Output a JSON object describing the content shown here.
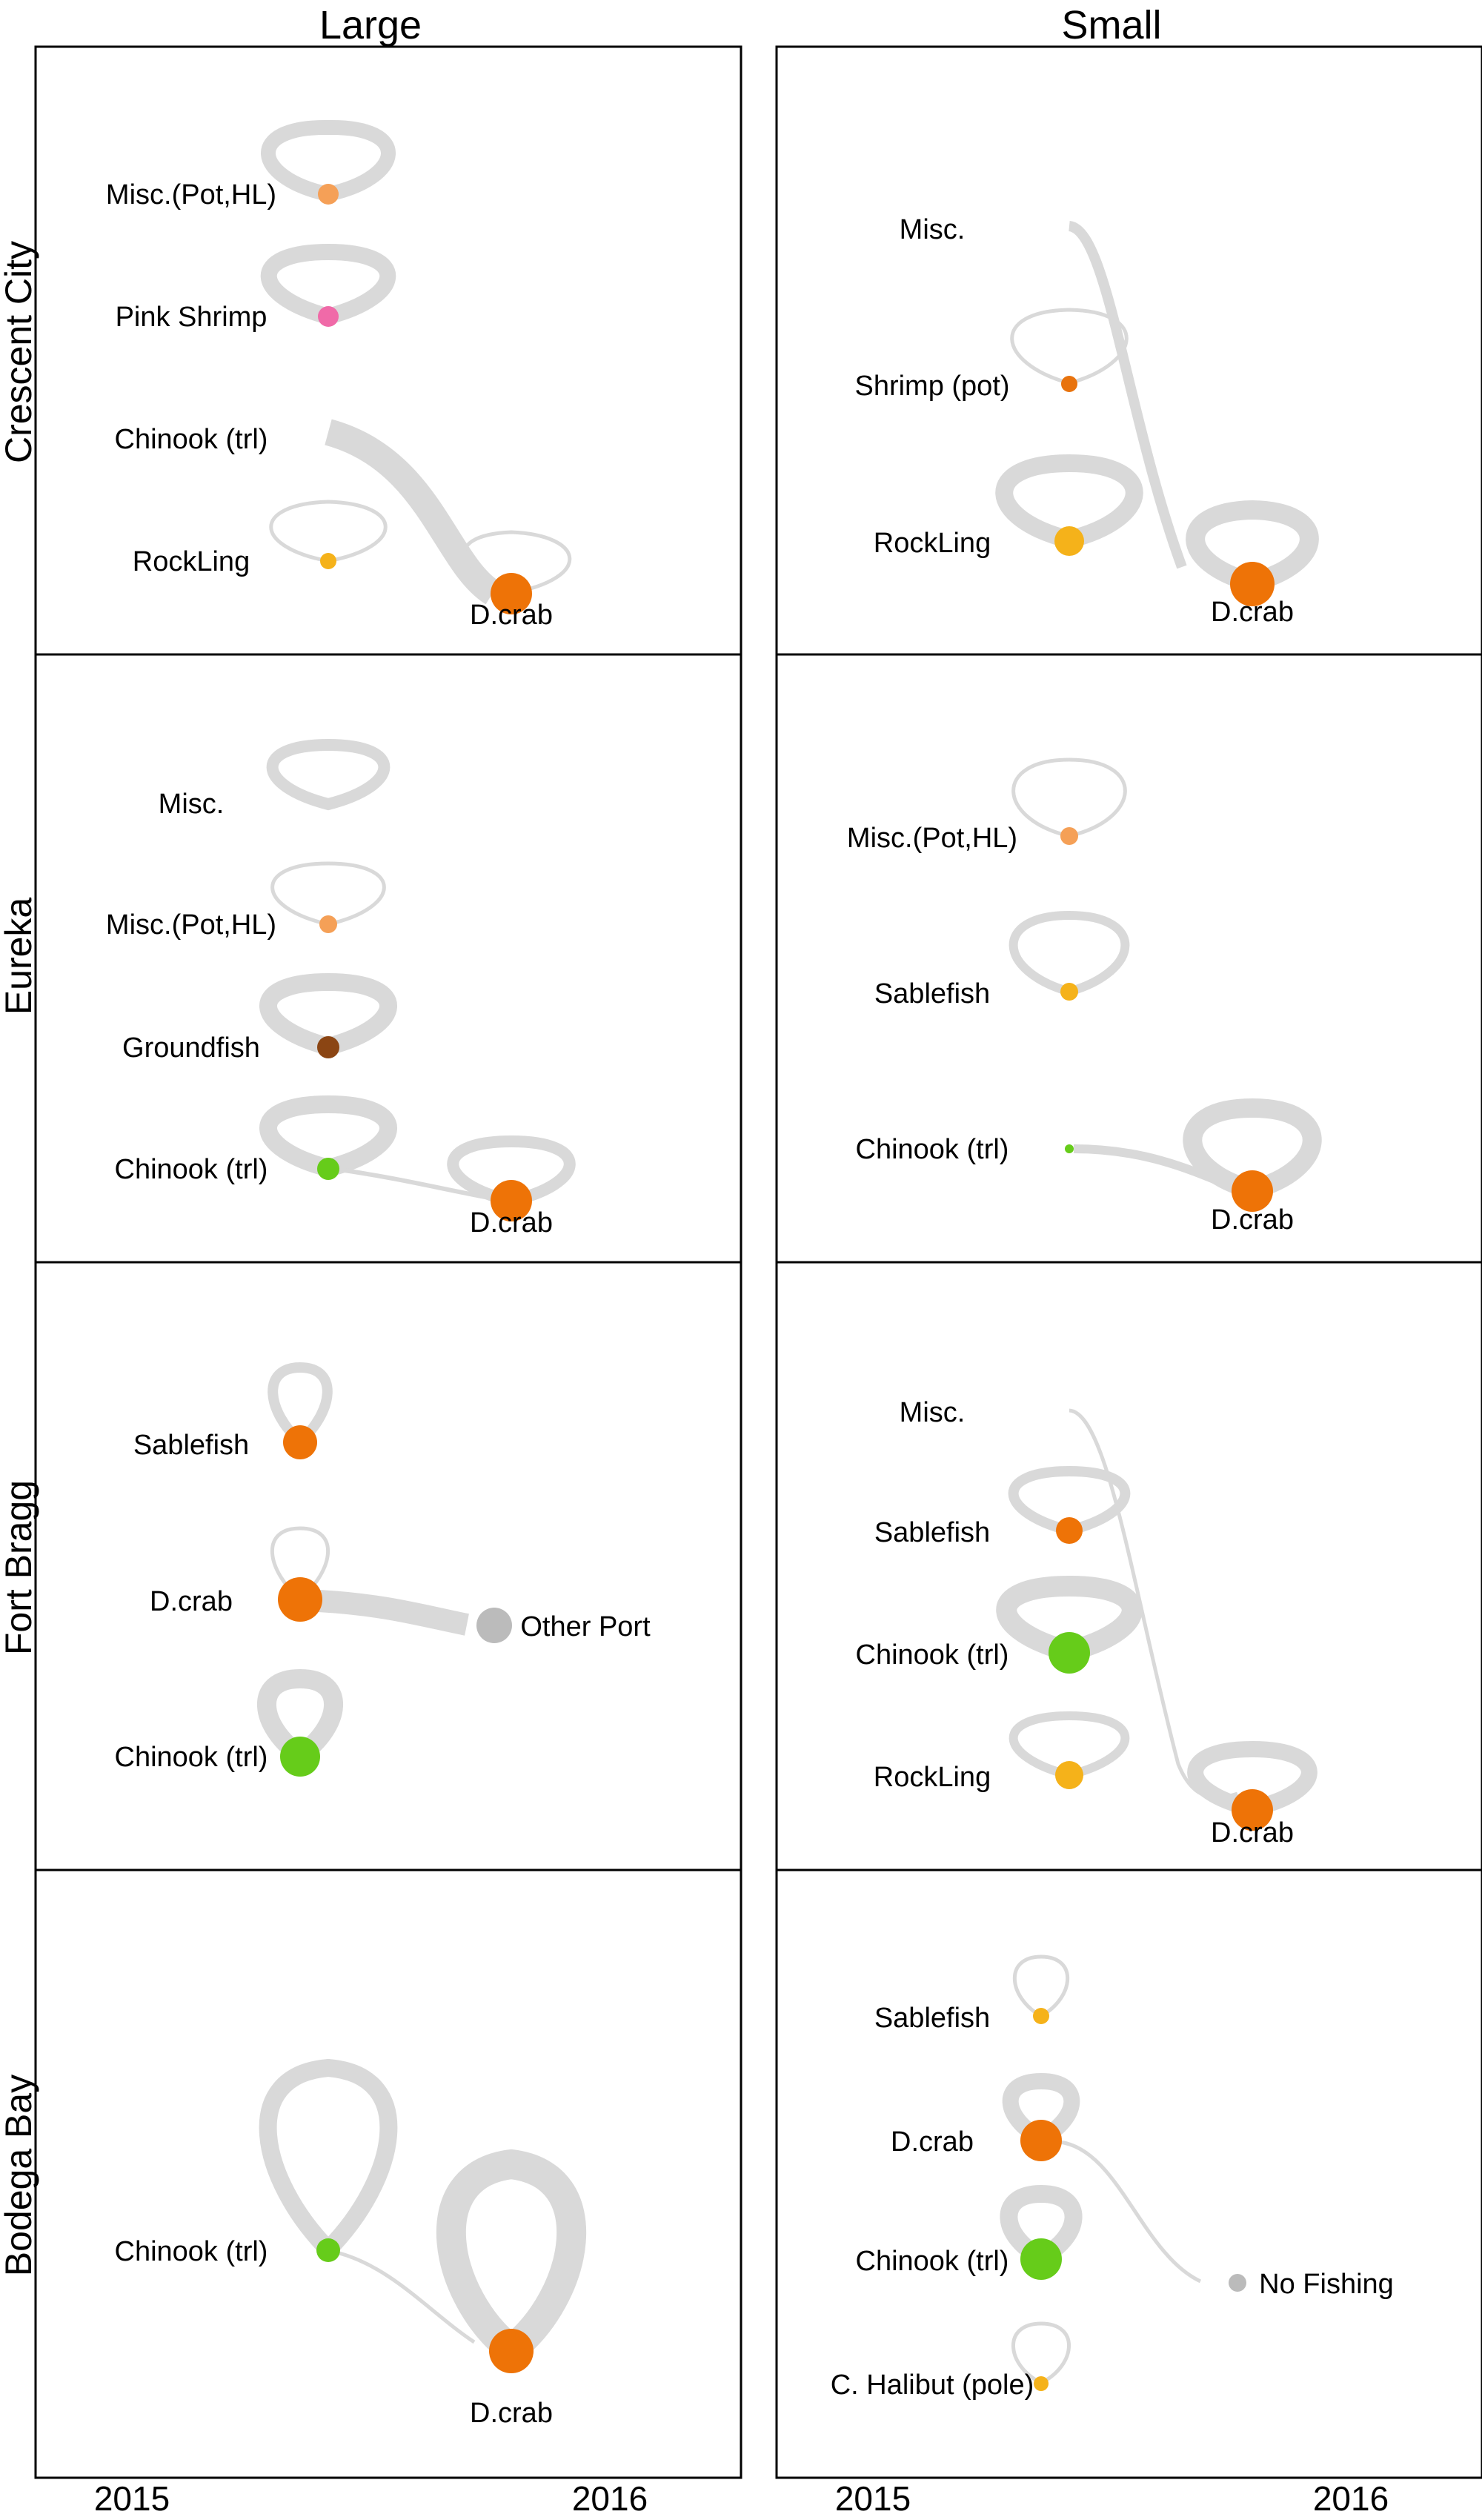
{
  "columns": [
    "Large",
    "Small"
  ],
  "rows": [
    "Crescent City",
    "Eureka",
    "Fort Bragg",
    "Bodega Bay"
  ],
  "years": {
    "left": "2015",
    "right": "2016"
  },
  "colors": {
    "flow": "#d9d9d9",
    "Misc.(Pot,HL)": "#f5a057",
    "Pink Shrimp": "#f06aa8",
    "Shrimp (pot)": "#e8730e",
    "Chinook (trl)": "#66cc1a",
    "RockLing": "#f5b21a",
    "D.crab": "#ee7307",
    "Groundfish": "#8b4513",
    "Sablefish": "#f5b21a",
    "Sablefish (Fort Bragg)": "#ee7307",
    "Other Port": "#bbbbbb",
    "No Fishing": "#bbbbbb",
    "C. Halibut (pole)": "#f5b21a"
  },
  "panels": {
    "crescent_large": {
      "labels": [
        "Misc.(Pot,HL)",
        "Pink Shrimp",
        "Chinook (trl)",
        "RockLing",
        "D.crab"
      ],
      "flows": [
        [
          "Chinook (trl)",
          "D.crab"
        ]
      ]
    },
    "crescent_small": {
      "labels": [
        "Misc.",
        "Shrimp (pot)",
        "RockLing",
        "D.crab"
      ],
      "flows": [
        [
          "Misc.",
          "D.crab"
        ]
      ]
    },
    "eureka_large": {
      "labels": [
        "Misc.",
        "Misc.(Pot,HL)",
        "Groundfish",
        "Chinook (trl)",
        "D.crab"
      ],
      "flows": [
        [
          "Chinook (trl)",
          "D.crab"
        ]
      ]
    },
    "eureka_small": {
      "labels": [
        "Misc.(Pot,HL)",
        "Sablefish",
        "Chinook (trl)",
        "D.crab"
      ],
      "flows": [
        [
          "Chinook (trl)",
          "D.crab"
        ]
      ]
    },
    "fortbragg_large": {
      "labels": [
        "Sablefish",
        "D.crab",
        "Other Port",
        "Chinook (trl)"
      ],
      "flows": [
        [
          "D.crab",
          "Other Port"
        ]
      ]
    },
    "fortbragg_small": {
      "labels": [
        "Misc.",
        "Sablefish",
        "Chinook (trl)",
        "RockLing",
        "D.crab"
      ],
      "flows": [
        [
          "Misc.",
          "D.crab"
        ]
      ]
    },
    "bodega_large": {
      "labels": [
        "Chinook (trl)",
        "D.crab"
      ],
      "flows": [
        [
          "Chinook (trl)",
          "D.crab"
        ]
      ]
    },
    "bodega_small": {
      "labels": [
        "Sablefish",
        "D.crab",
        "No Fishing",
        "Chinook (trl)",
        "C. Halibut (pole)"
      ],
      "flows": [
        [
          "D.crab",
          "No Fishing"
        ]
      ]
    }
  }
}
